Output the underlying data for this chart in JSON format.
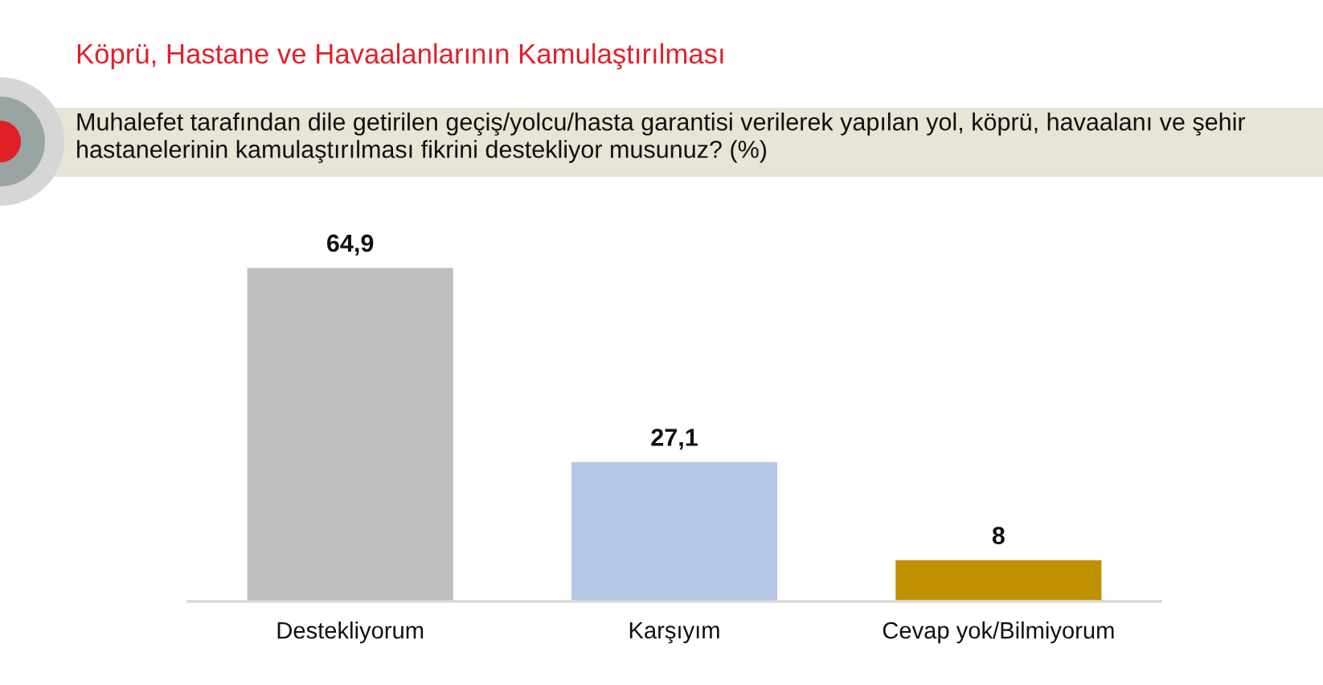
{
  "chart_data": {
    "type": "bar",
    "title": "Köprü, Hastane ve Havaalanlarının Kamulaştırılması",
    "subtitle": "Muhalefet tarafından dile getirilen geçiş/yolcu/hasta garantisi verilerek yapılan yol, köprü, havaalanı ve şehir hastanelerinin kamulaştırılması fikrini destekliyor musunuz? (%)",
    "categories": [
      "Destekliyorum",
      "Karşıyım",
      "Cevap yok/Bilmiyorum"
    ],
    "values": [
      64.9,
      27.1,
      8
    ],
    "colors": [
      "#bfbfbf",
      "#b4c7e7",
      "#bf9000"
    ],
    "value_labels": [
      "64,9",
      "27,1",
      "8"
    ]
  }
}
